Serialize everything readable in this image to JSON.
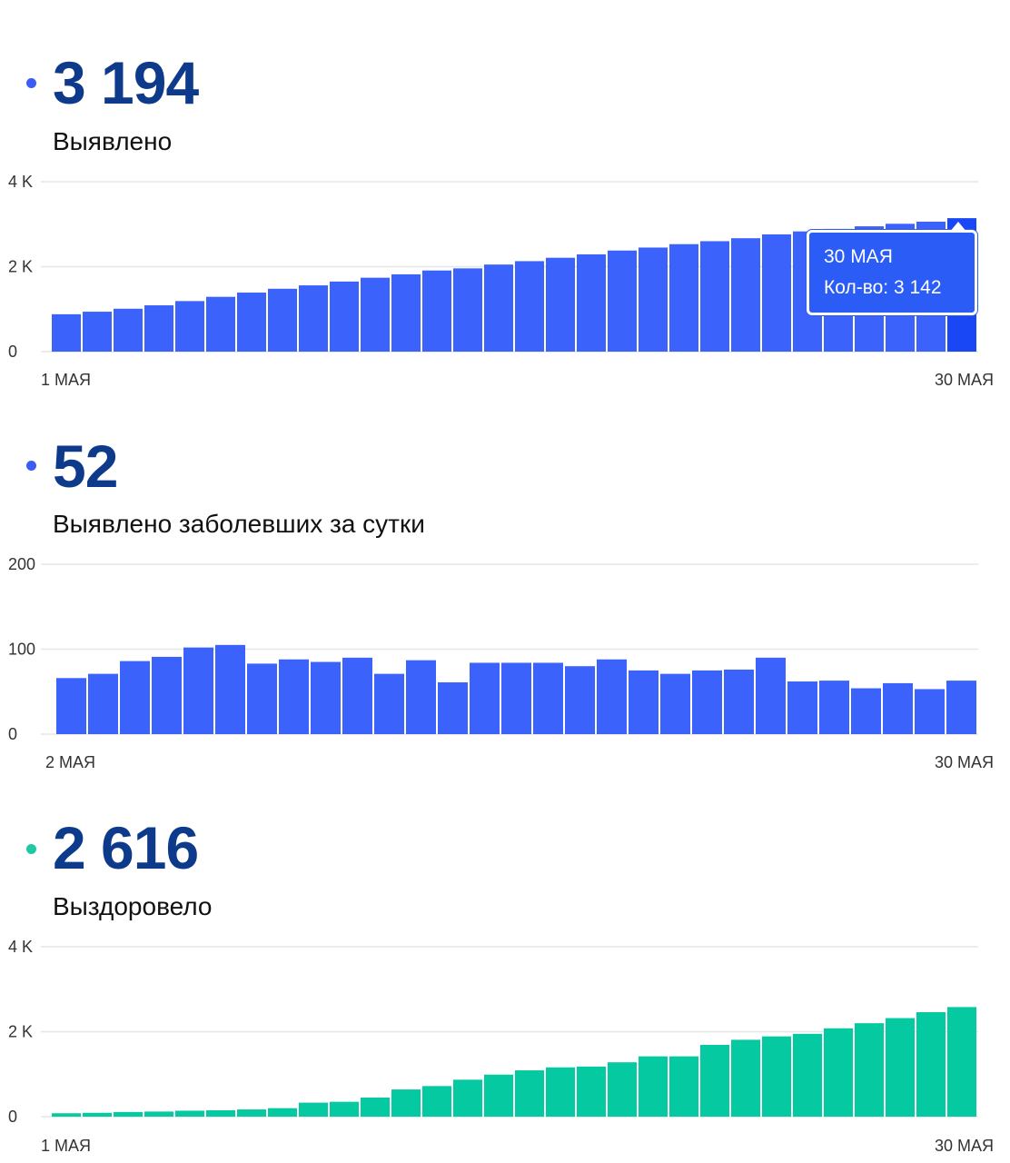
{
  "panels": [
    {
      "value": "3 194",
      "label": "Выявлено",
      "dot_color": "#3b5cf5",
      "bar_color": "#3b63fb",
      "highlight_color": "#1a47f5"
    },
    {
      "value": "52",
      "label": "Выявлено заболевших за сутки",
      "dot_color": "#3b5cf5",
      "bar_color": "#3b63fb"
    },
    {
      "value": "2 616",
      "label": "Выздоровело",
      "dot_color": "#1ec9a3",
      "bar_color": "#05c9a1"
    }
  ],
  "tooltip": {
    "date": "30 МАЯ",
    "text": "Кол-во: 3 142"
  },
  "chart_data": [
    {
      "type": "bar",
      "title": "Выявлено",
      "x_start_label": "1 МАЯ",
      "x_end_label": "30 МАЯ",
      "y_ticks": [
        "0",
        "2 K",
        "4 K"
      ],
      "ylim": [
        0,
        4000
      ],
      "grid": true,
      "values": [
        880,
        940,
        1010,
        1090,
        1190,
        1290,
        1390,
        1480,
        1560,
        1650,
        1740,
        1820,
        1910,
        1960,
        2050,
        2130,
        2210,
        2290,
        2380,
        2450,
        2530,
        2600,
        2670,
        2760,
        2830,
        2890,
        2950,
        3010,
        3060,
        3142
      ]
    },
    {
      "type": "bar",
      "title": "Выявлено заболевших за сутки",
      "x_start_label": "2 МАЯ",
      "x_end_label": "30 МАЯ",
      "y_ticks": [
        "0",
        "100",
        "200"
      ],
      "ylim": [
        0,
        200
      ],
      "grid": true,
      "values": [
        66,
        71,
        86,
        91,
        102,
        105,
        83,
        88,
        85,
        90,
        71,
        87,
        61,
        84,
        84,
        84,
        80,
        88,
        75,
        71,
        75,
        76,
        90,
        62,
        63,
        54,
        60,
        53,
        63
      ]
    },
    {
      "type": "bar",
      "title": "Выздоровело",
      "x_start_label": "1 МАЯ",
      "x_end_label": "30 МАЯ",
      "y_ticks": [
        "0",
        "2 K",
        "4 K"
      ],
      "ylim": [
        0,
        4000
      ],
      "grid": true,
      "values": [
        80,
        90,
        110,
        120,
        140,
        150,
        170,
        200,
        330,
        350,
        450,
        640,
        720,
        870,
        990,
        1090,
        1160,
        1180,
        1280,
        1420,
        1420,
        1690,
        1810,
        1890,
        1950,
        2080,
        2200,
        2320,
        2460,
        2580
      ]
    }
  ]
}
